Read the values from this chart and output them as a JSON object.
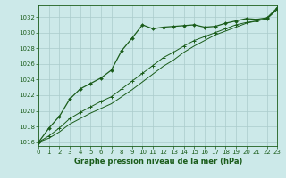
{
  "title": "Graphe pression niveau de la mer (hPa)",
  "background_color": "#cce9e9",
  "grid_color": "#aacccc",
  "line_color": "#1a5c1a",
  "xlim": [
    0,
    23
  ],
  "ylim": [
    1015.5,
    1033.5
  ],
  "yticks": [
    1016,
    1018,
    1020,
    1022,
    1024,
    1026,
    1028,
    1030,
    1032
  ],
  "xticks": [
    0,
    1,
    2,
    3,
    4,
    5,
    6,
    7,
    8,
    9,
    10,
    11,
    12,
    13,
    14,
    15,
    16,
    17,
    18,
    19,
    20,
    21,
    22,
    23
  ],
  "series1_x": [
    0,
    1,
    2,
    3,
    4,
    5,
    6,
    7,
    8,
    9,
    10,
    11,
    12,
    13,
    14,
    15,
    16,
    17,
    18,
    19,
    20,
    21,
    22,
    23
  ],
  "series1_y": [
    1016.0,
    1017.8,
    1019.3,
    1021.5,
    1022.8,
    1023.5,
    1024.2,
    1025.2,
    1027.7,
    1029.3,
    1031.0,
    1030.5,
    1030.7,
    1030.8,
    1030.9,
    1031.0,
    1030.7,
    1030.8,
    1031.2,
    1031.5,
    1031.8,
    1031.7,
    1031.9,
    1033.2
  ],
  "series2_x": [
    0,
    1,
    2,
    3,
    4,
    5,
    6,
    7,
    8,
    9,
    10,
    11,
    12,
    13,
    14,
    15,
    16,
    17,
    18,
    19,
    20,
    21,
    22,
    23
  ],
  "series2_y": [
    1016.0,
    1016.8,
    1017.8,
    1019.0,
    1019.8,
    1020.5,
    1021.2,
    1021.8,
    1022.8,
    1023.8,
    1024.8,
    1025.8,
    1026.8,
    1027.5,
    1028.3,
    1029.0,
    1029.5,
    1030.0,
    1030.5,
    1031.0,
    1031.3,
    1031.5,
    1031.8,
    1033.0
  ],
  "series3_x": [
    0,
    1,
    2,
    3,
    4,
    5,
    6,
    7,
    8,
    9,
    10,
    11,
    12,
    13,
    14,
    15,
    16,
    17,
    18,
    19,
    20,
    21,
    22,
    23
  ],
  "series3_y": [
    1016.0,
    1016.5,
    1017.3,
    1018.3,
    1019.0,
    1019.7,
    1020.3,
    1020.9,
    1021.8,
    1022.7,
    1023.7,
    1024.7,
    1025.7,
    1026.5,
    1027.5,
    1028.3,
    1029.0,
    1029.7,
    1030.2,
    1030.7,
    1031.2,
    1031.5,
    1031.8,
    1033.0
  ]
}
